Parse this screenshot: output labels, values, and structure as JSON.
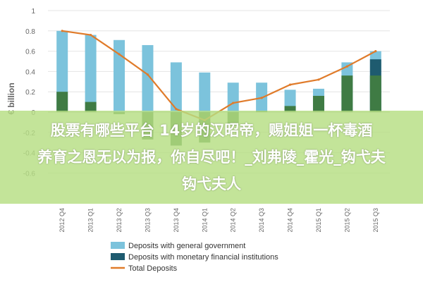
{
  "chart_data": {
    "type": "bar",
    "ylabel": "€ billion",
    "ylim": [
      -0.8,
      1.0
    ],
    "yticks": [
      1,
      0.8,
      0.6,
      0.4,
      0.2,
      0,
      -0.2,
      -0.4,
      -0.6
    ],
    "categories": [
      "2012 Q4",
      "2013 Q1",
      "2013 Q2",
      "2013 Q3",
      "2013 Q4",
      "2014 Q1",
      "2014 Q2",
      "2014 Q3",
      "2014 Q4",
      "2015 Q1",
      "2015 Q2",
      "2015 Q3"
    ],
    "series": [
      {
        "name": "Deposits with general government",
        "type": "bar",
        "color": "#7cc3dc",
        "values": [
          0.8,
          0.76,
          0.71,
          0.66,
          0.49,
          0.39,
          0.29,
          0.29,
          0.22,
          0.23,
          0.49,
          0.6
        ]
      },
      {
        "name": "Deposits with monetary financial institutions",
        "type": "bar",
        "color": "#1e5b6f",
        "values": [
          0,
          0,
          0,
          0,
          0,
          0,
          0,
          0,
          0,
          0,
          0,
          0.52
        ]
      },
      {
        "name": "",
        "type": "bar",
        "color": "#3f7b44",
        "values": [
          0.2,
          0.1,
          -0.02,
          -0.27,
          -0.33,
          -0.3,
          -0.13,
          0.01,
          0.06,
          0.16,
          0.36,
          0.36
        ]
      },
      {
        "name": "Total Deposits",
        "type": "line",
        "color": "#e07b2a",
        "values": [
          0.8,
          0.76,
          0.57,
          0.37,
          0.03,
          -0.08,
          0.09,
          0.14,
          0.27,
          0.32,
          0.45,
          0.6
        ]
      }
    ],
    "legend_position": "bottom"
  },
  "overlay": {
    "line1": "股票有哪些平台 14岁的汉昭帝，赐姐姐一杯毒酒",
    "line2": "养育之恩无以为报，你自尽吧！_刘弗陵_霍光_钩弋夫",
    "line3": "钩弋夫人"
  }
}
